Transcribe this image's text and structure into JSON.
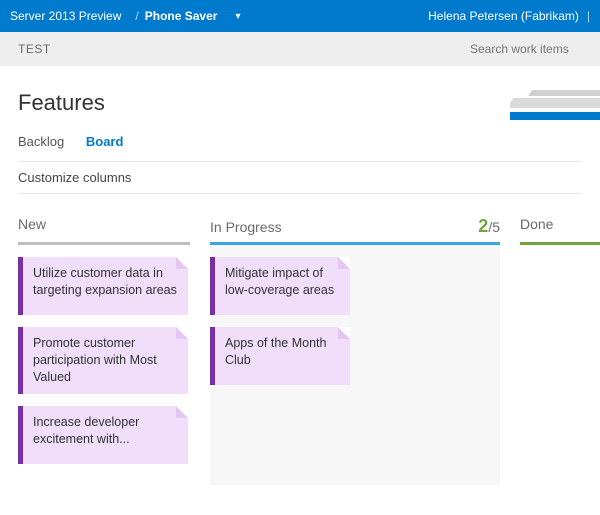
{
  "topbar": {
    "breadcrumb_root": "Server 2013 Preview",
    "separator": "/",
    "project": "Phone Saver",
    "user": "Helena Petersen (Fabrikam)"
  },
  "subbar": {
    "test_label": "TEST",
    "search_placeholder": "Search work items"
  },
  "header": {
    "title": "Features",
    "tabs": {
      "backlog": "Backlog",
      "board": "Board"
    },
    "customize": "Customize columns"
  },
  "board": {
    "columns": {
      "new": {
        "label": "New",
        "line_color": "#bfbfbf",
        "cards": [
          "Utilize customer data in targeting expansion areas",
          "Promote customer participation with Most Valued",
          "Increase developer excitement with..."
        ]
      },
      "in_progress": {
        "label": "In Progress",
        "line_color": "#3aa3e3",
        "wip_current": "2",
        "wip_max": "/5",
        "cards": [
          "Mitigate impact of low-coverage areas",
          "Apps of the Month Club"
        ]
      },
      "done": {
        "label": "Done",
        "line_color": "#6fa53c",
        "cards": []
      }
    },
    "card_style": {
      "bg": "#f1defb",
      "accent": "#7b2fa5",
      "fold": "#e3c6f2"
    }
  },
  "colors": {
    "brand_blue": "#007acc",
    "subbar_bg": "#eeeeee",
    "progress_body_bg": "#f7f7f7"
  }
}
